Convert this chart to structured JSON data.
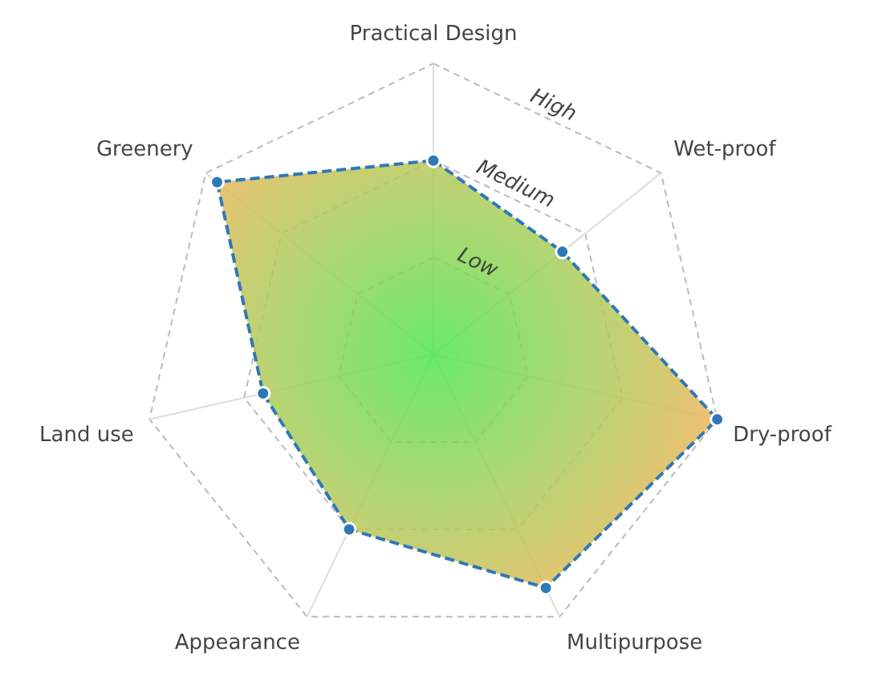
{
  "chart_data": {
    "type": "radar",
    "categories": [
      "Practical Design",
      "Wet-proof",
      "Dry-proof",
      "Multipurpose",
      "Appearance",
      "Land use",
      "Greenery"
    ],
    "series": [
      {
        "color": "#2f78b8",
        "values": [
          2.0,
          1.7,
          3.0,
          2.67,
          2.0,
          1.8,
          2.85
        ]
      }
    ],
    "ylim": [
      0,
      3
    ],
    "yticks": [
      {
        "value": 1,
        "label": "Low"
      },
      {
        "value": 2,
        "label": "Medium"
      },
      {
        "value": 3,
        "label": "High"
      }
    ],
    "grid": true,
    "marker": "circle",
    "line_style": "dashed",
    "legend": false
  }
}
